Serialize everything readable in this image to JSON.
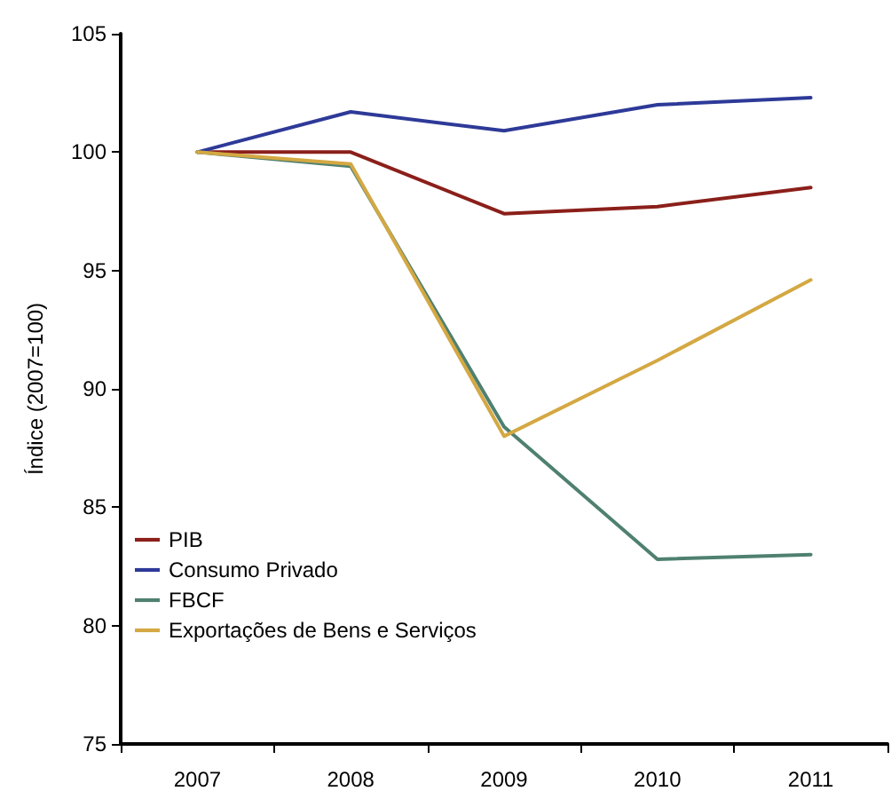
{
  "chart_data": {
    "type": "line",
    "ylabel": "Índice (2007=100)",
    "categories": [
      "2007",
      "2008",
      "2009",
      "2010",
      "2011"
    ],
    "series": [
      {
        "name": "PIB",
        "color": "#8b1f1a",
        "values": [
          100,
          100.0,
          97.4,
          97.7,
          98.5
        ]
      },
      {
        "name": "Consumo Privado",
        "color": "#2e3a98",
        "values": [
          100,
          101.7,
          100.9,
          102.0,
          102.3
        ]
      },
      {
        "name": "FBCF",
        "color": "#4f8070",
        "values": [
          100,
          99.4,
          88.4,
          82.8,
          83.0
        ]
      },
      {
        "name": "Exportações de Bens e Serviços",
        "color": "#d4a843",
        "values": [
          100,
          99.5,
          88.0,
          91.2,
          94.6
        ]
      }
    ],
    "ylim": [
      75,
      105
    ],
    "yticks": [
      75,
      80,
      85,
      90,
      95,
      100,
      105
    ],
    "grid": false,
    "legend": "bottom left",
    "marker": "none",
    "line_style": "solid"
  }
}
